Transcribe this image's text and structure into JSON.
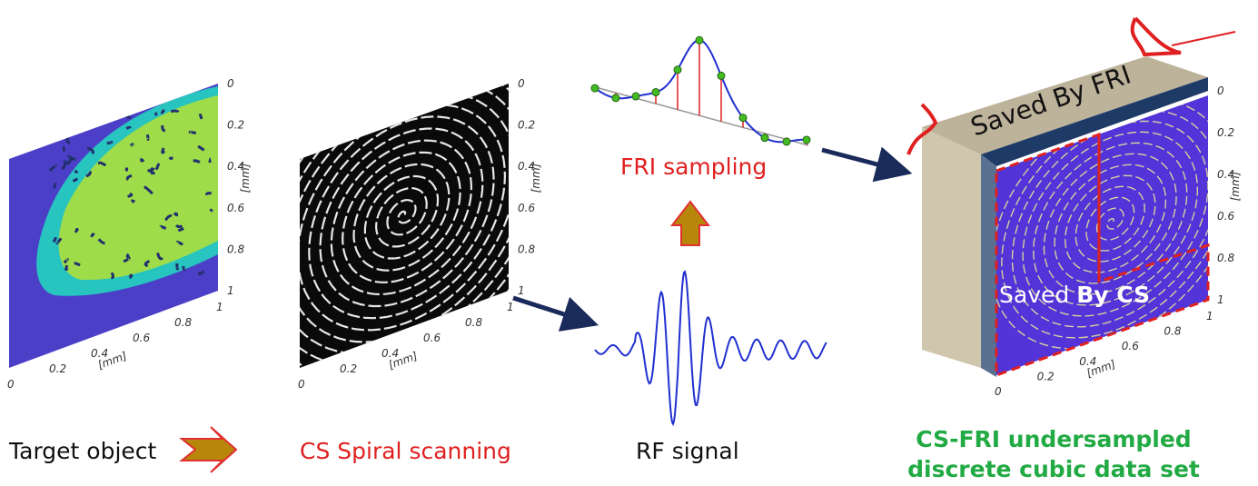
{
  "target_object": {
    "label": "Target object",
    "y_ticks": [
      "0",
      "0.2",
      "0.4",
      "0.6",
      "0.8",
      "1"
    ],
    "x_ticks": [
      "0",
      "0.2",
      "0.4",
      "0.6",
      "0.8",
      "1"
    ],
    "y_unit": "[mm]",
    "x_unit": "[mm]"
  },
  "spiral_scanning": {
    "label": "CS Spiral scanning",
    "y_ticks": [
      "0",
      "0.2",
      "0.4",
      "0.6",
      "0.8",
      "1"
    ],
    "x_ticks": [
      "0",
      "0.2",
      "0.4",
      "0.6",
      "0.8",
      "1"
    ],
    "y_unit": "[mm]",
    "x_unit": "[mm]"
  },
  "rf_signal": {
    "label": "RF signal"
  },
  "fri_sampling": {
    "label": "FRI sampling"
  },
  "data_set": {
    "label_line1": "CS-FRI undersampled",
    "label_line2": "discrete cubic data set",
    "saved_by_fri": "Saved By FRI",
    "saved_by_cs": {
      "prefix": "Saved",
      "emphasis": "By CS"
    },
    "y_ticks": [
      "0",
      "0.2",
      "0.4",
      "0.6",
      "0.8",
      "1"
    ],
    "x_ticks": [
      "0",
      "0.2",
      "0.4",
      "0.6",
      "0.8",
      "1"
    ],
    "y_unit": "[mm]",
    "x_unit": "[mm]"
  }
}
